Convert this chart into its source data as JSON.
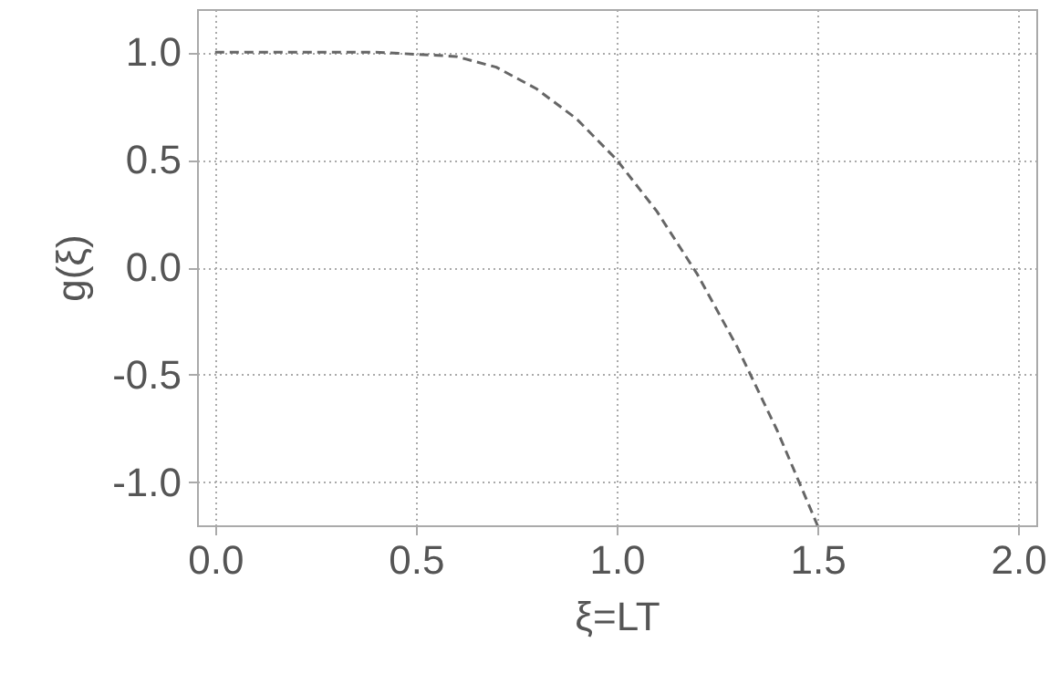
{
  "chart_data": {
    "type": "line",
    "xlabel": "ξ=LT",
    "ylabel": "g(ξ)",
    "x": [
      0,
      0.2,
      0.4,
      0.5,
      0.6,
      0.7,
      0.8,
      0.9,
      1.0,
      1.1,
      1.2,
      1.3,
      1.4,
      1.5
    ],
    "series": [
      {
        "color": "#666666",
        "values": [
          1.0,
          1.0,
          1.0,
          0.99,
          0.98,
          0.93,
          0.83,
          0.69,
          0.5,
          0.26,
          -0.03,
          -0.37,
          -0.76,
          -1.2
        ]
      }
    ],
    "xlim": [
      -0.045,
      2.045
    ],
    "ylim": [
      -1.2,
      1.2
    ],
    "xticks": [
      {
        "value": 0,
        "label": "0.0"
      },
      0.5,
      {
        "value": 1,
        "label": "1.0"
      },
      1.5,
      {
        "value": 2,
        "label": "2.0"
      }
    ],
    "yticks": [
      {
        "value": -1,
        "label": "-1.0"
      },
      -0.5,
      {
        "value": 0,
        "label": "0.0"
      },
      0.5,
      {
        "value": 1,
        "label": "1.0"
      }
    ],
    "grid": true,
    "line_style": "dashed",
    "marker": "none"
  }
}
